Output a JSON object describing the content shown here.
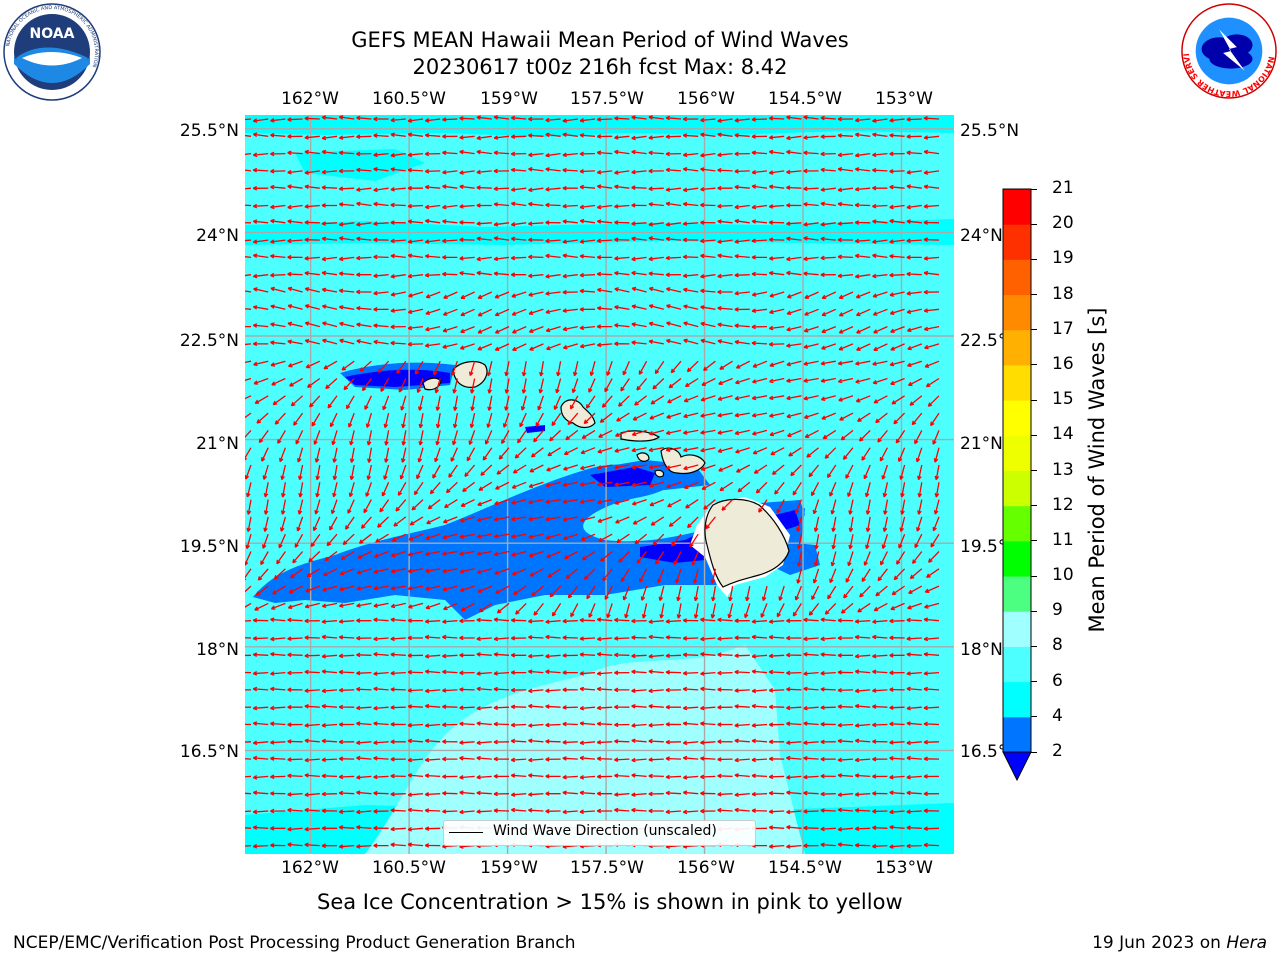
{
  "header": {
    "title_line1": "GEFS MEAN Hawaii Mean Period of Wind Waves",
    "title_line2": "20230617 t00z 216h fcst   Max: 8.42"
  },
  "logos": {
    "noaa": {
      "text": "NOAA",
      "ring_text": "NATIONAL OCEANIC AND ATMOSPHERIC ADMINISTRATION",
      "bottom_text": "U.S. DEPARTMENT OF COMMERCE"
    },
    "nws": {
      "ring_text": "NATIONAL WEATHER SERVICE"
    }
  },
  "map": {
    "lon_labels": [
      "162°W",
      "160.5°W",
      "159°W",
      "157.5°W",
      "156°W",
      "154.5°W",
      "153°W"
    ],
    "lat_labels": [
      "25.5°N",
      "24°N",
      "22.5°N",
      "21°N",
      "19.5°N",
      "18°N",
      "16.5°N"
    ],
    "lon_range": [
      -163.0,
      -152.2
    ],
    "lat_range": [
      15.0,
      25.7
    ],
    "ocean_color": "#4dffff",
    "arrow_color": "#ff0000",
    "land_color": "#efebd9",
    "legend_label": "Wind Wave Direction (unscaled)"
  },
  "colorbar": {
    "title": "Mean Period of Wind Waves [s]",
    "levels": [
      2,
      4,
      6,
      8,
      9,
      10,
      11,
      12,
      13,
      14,
      15,
      16,
      17,
      18,
      19,
      20,
      21
    ],
    "colors": [
      "#0075ff",
      "#00ffff",
      "#4dffff",
      "#a0ffff",
      "#4dff80",
      "#00ff00",
      "#66ff00",
      "#ccff00",
      "#eeff00",
      "#ffff00",
      "#ffdd00",
      "#ffb000",
      "#ff8a00",
      "#ff6100",
      "#ff3000",
      "#ff0000"
    ],
    "underflow_color": "#0000ff"
  },
  "note": "Sea Ice Concentration > 15% is shown in pink to yellow",
  "footer": {
    "left": "NCEP/EMC/Verification Post Processing Product Generation Branch",
    "right_date": "19 Jun 2023 on ",
    "right_host": "Hera"
  }
}
